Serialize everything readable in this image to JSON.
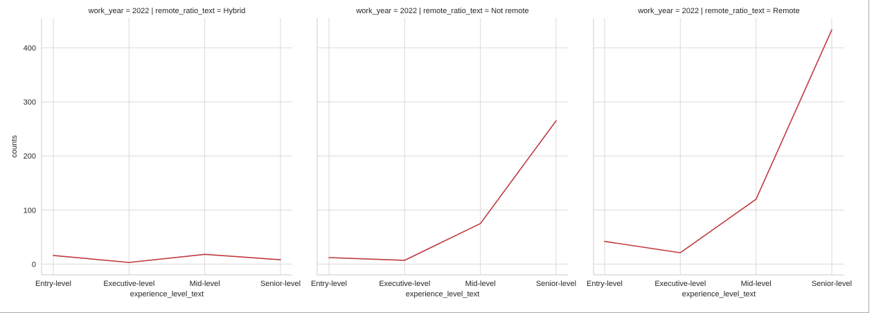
{
  "chart_data": {
    "type": "line",
    "ylabel": "counts",
    "ylim": [
      -20,
      455
    ],
    "yticks": [
      0,
      100,
      200,
      300,
      400
    ],
    "grid": true,
    "line_color": "#c0383c",
    "panels": [
      {
        "title": "work_year = 2022 | remote_ratio_text = Hybrid",
        "xlabel": "experience_level_text",
        "categories": [
          "Entry-level",
          "Executive-level",
          "Mid-level",
          "Senior-level"
        ],
        "values": [
          16,
          3,
          18,
          8
        ]
      },
      {
        "title": "work_year = 2022 | remote_ratio_text = Not remote",
        "xlabel": "experience_level_text",
        "categories": [
          "Entry-level",
          "Executive-level",
          "Mid-level",
          "Senior-level"
        ],
        "values": [
          12,
          7,
          75,
          265
        ]
      },
      {
        "title": "work_year = 2022 | remote_ratio_text = Remote",
        "xlabel": "experience_level_text",
        "categories": [
          "Entry-level",
          "Executive-level",
          "Mid-level",
          "Senior-level"
        ],
        "values": [
          42,
          21,
          120,
          433
        ]
      }
    ]
  }
}
